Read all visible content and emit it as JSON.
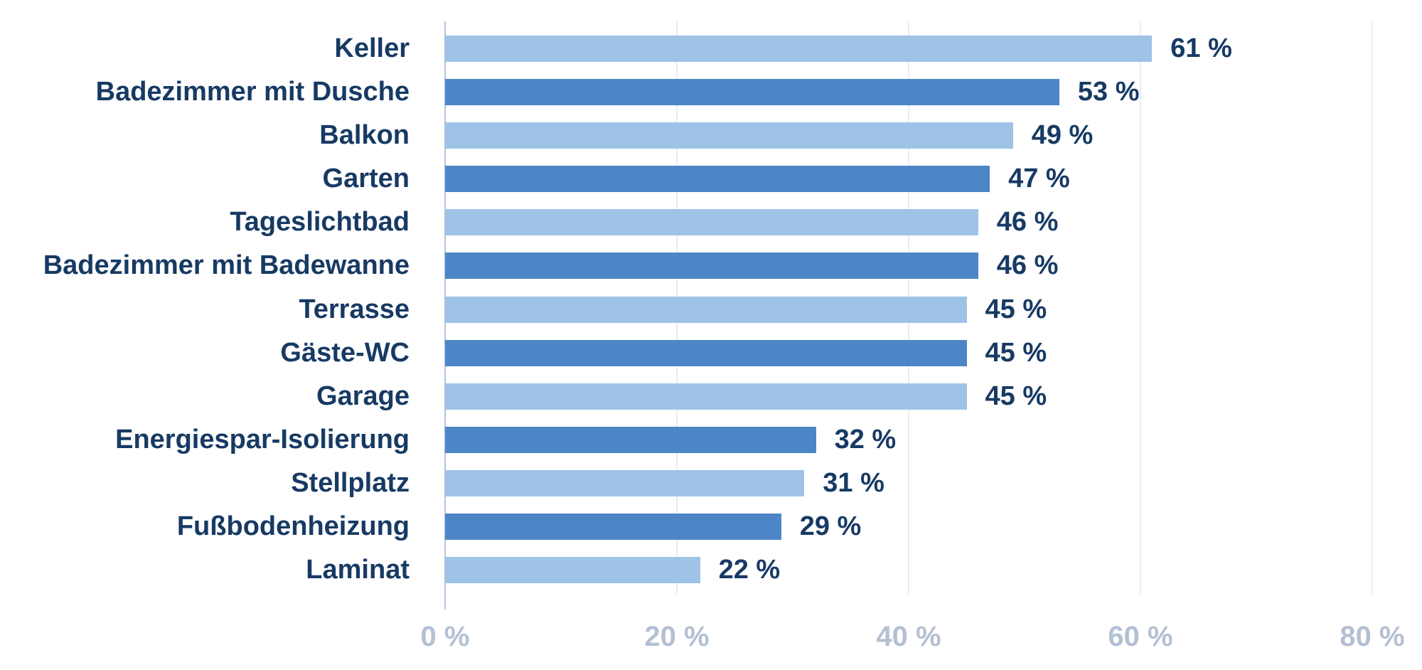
{
  "chart_data": {
    "type": "bar",
    "orientation": "horizontal",
    "title": "",
    "xlabel": "",
    "ylabel": "",
    "categories": [
      "Keller",
      "Badezimmer mit Dusche",
      "Balkon",
      "Garten",
      "Tageslichtbad",
      "Badezimmer mit Badewanne",
      "Terrasse",
      "Gäste-WC",
      "Garage",
      "Energiespar-Isolierung",
      "Stellplatz",
      "Fußbodenheizung",
      "Laminat"
    ],
    "values": [
      61,
      53,
      49,
      47,
      46,
      46,
      45,
      45,
      45,
      32,
      31,
      29,
      22
    ],
    "value_labels": [
      "61 %",
      "53 %",
      "49 %",
      "47 %",
      "46 %",
      "46 %",
      "45 %",
      "45 %",
      "45 %",
      "32 %",
      "31 %",
      "29 %",
      "22 %"
    ],
    "xlim": [
      0,
      80
    ],
    "x_tick_values": [
      0,
      20,
      40,
      60,
      80
    ],
    "x_tick_labels": [
      "0 %",
      "20 %",
      "40 %",
      "60 %",
      "80 %"
    ],
    "grid": "vertical",
    "legend": "none",
    "bar_colors_alternating": [
      "#9fc3e7",
      "#4c86c6"
    ]
  },
  "colors": {
    "light_bar": "#9fc3e7",
    "dark_bar": "#4c86c6",
    "label_text": "#173a64",
    "value_text": "#173a64",
    "tick_text": "#b3c0d2",
    "axis_line": "#b3c3d6",
    "gridline": "#e9edf2",
    "background": "#ffffff"
  }
}
